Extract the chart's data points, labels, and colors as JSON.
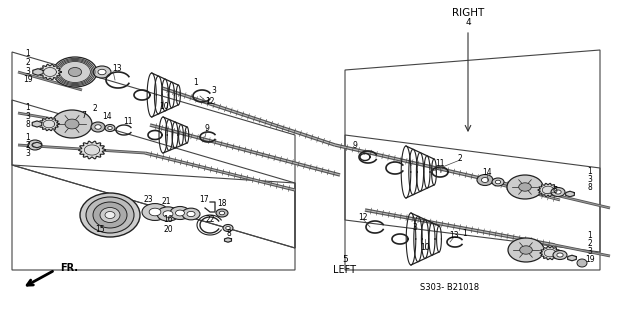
{
  "bg_color": "#ffffff",
  "fig_width": 6.21,
  "fig_height": 3.2,
  "dpi": 100,
  "diagram_code": "S303- B21018",
  "right_label": "RIGHT",
  "right_num": "4",
  "left_label": "LEFT",
  "left_num": "5",
  "fr_label": "FR.",
  "line_color": "#222222",
  "text_color": "#000000",
  "label_fontsize": 5.5,
  "diagram_fontsize": 6.5
}
